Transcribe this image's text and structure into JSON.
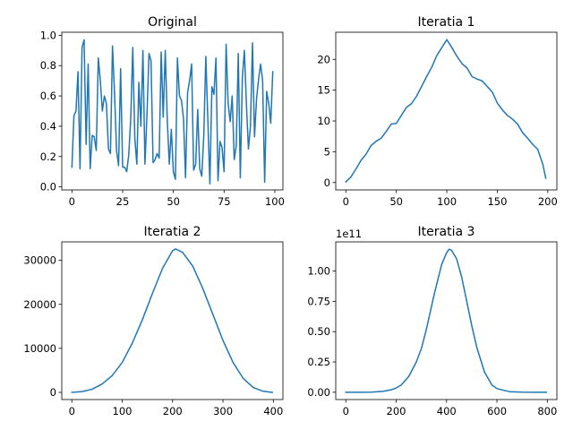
{
  "colors": {
    "series": "#1f77b4",
    "axes": "#000000",
    "background": "#ffffff"
  },
  "chart_data": [
    {
      "type": "line",
      "title": "Original",
      "xlabel": "",
      "ylabel": "",
      "xlim": [
        -5,
        104
      ],
      "ylim": [
        -0.02,
        1.02
      ],
      "xticks": [
        0,
        25,
        50,
        75,
        100
      ],
      "yticks": [
        0.0,
        0.2,
        0.4,
        0.6,
        0.8,
        1.0
      ],
      "ytick_labels": [
        "0.0",
        "0.2",
        "0.4",
        "0.6",
        "0.8",
        "1.0"
      ],
      "offset_label": "",
      "grid": false,
      "x": [
        0,
        1,
        2,
        3,
        4,
        5,
        6,
        7,
        8,
        9,
        10,
        11,
        12,
        13,
        14,
        15,
        16,
        17,
        18,
        19,
        20,
        21,
        22,
        23,
        24,
        25,
        26,
        27,
        28,
        29,
        30,
        31,
        32,
        33,
        34,
        35,
        36,
        37,
        38,
        39,
        40,
        41,
        42,
        43,
        44,
        45,
        46,
        47,
        48,
        49,
        50,
        51,
        52,
        53,
        54,
        55,
        56,
        57,
        58,
        59,
        60,
        61,
        62,
        63,
        64,
        65,
        66,
        67,
        68,
        69,
        70,
        71,
        72,
        73,
        74,
        75,
        76,
        77,
        78,
        79,
        80,
        81,
        82,
        83,
        84,
        85,
        86,
        87,
        88,
        89,
        90,
        91,
        92,
        93,
        94,
        95,
        96,
        97,
        98,
        99
      ],
      "y": [
        0.13,
        0.47,
        0.5,
        0.76,
        0.12,
        0.92,
        0.97,
        0.28,
        0.81,
        0.12,
        0.34,
        0.33,
        0.24,
        0.85,
        0.7,
        0.5,
        0.6,
        0.55,
        0.25,
        0.22,
        0.93,
        0.62,
        0.24,
        0.14,
        0.78,
        0.13,
        0.13,
        0.1,
        0.21,
        0.45,
        0.92,
        0.32,
        0.15,
        0.69,
        0.4,
        0.9,
        0.15,
        0.48,
        0.88,
        0.83,
        0.16,
        0.18,
        0.22,
        0.19,
        0.89,
        0.46,
        0.9,
        0.44,
        0.15,
        0.38,
        0.1,
        0.05,
        0.85,
        0.6,
        0.57,
        0.45,
        0.06,
        0.62,
        0.7,
        0.81,
        0.11,
        0.15,
        0.51,
        0.12,
        0.07,
        0.34,
        0.86,
        0.44,
        0.02,
        0.66,
        0.61,
        0.85,
        0.04,
        0.3,
        0.26,
        0.1,
        0.94,
        0.55,
        0.43,
        0.6,
        0.18,
        0.27,
        0.88,
        0.06,
        0.72,
        0.9,
        0.55,
        0.25,
        0.4,
        0.95,
        0.33,
        0.58,
        0.71,
        0.81,
        0.7,
        0.03,
        0.63,
        0.55,
        0.42,
        0.76
      ]
    },
    {
      "type": "line",
      "title": "Iteratia 1",
      "xlabel": "",
      "ylabel": "",
      "xlim": [
        -10,
        209
      ],
      "ylim": [
        -1.2,
        24.4
      ],
      "xticks": [
        0,
        50,
        100,
        150,
        200
      ],
      "yticks": [
        0,
        5,
        10,
        15,
        20
      ],
      "ytick_labels": [
        "0",
        "5",
        "10",
        "15",
        "20"
      ],
      "offset_label": "",
      "grid": false,
      "x": [
        0,
        5,
        10,
        15,
        20,
        25,
        30,
        35,
        40,
        45,
        50,
        55,
        60,
        65,
        70,
        75,
        80,
        85,
        90,
        95,
        100,
        105,
        110,
        115,
        120,
        125,
        130,
        135,
        140,
        145,
        150,
        155,
        160,
        165,
        170,
        175,
        180,
        185,
        190,
        195,
        198
      ],
      "y": [
        0.1,
        0.9,
        2.2,
        3.6,
        4.6,
        6.0,
        6.7,
        7.2,
        8.3,
        9.5,
        9.6,
        10.9,
        12.2,
        12.8,
        14.0,
        15.6,
        17.2,
        18.7,
        20.6,
        21.9,
        23.2,
        21.9,
        20.5,
        19.3,
        18.6,
        17.2,
        16.8,
        16.5,
        15.6,
        14.7,
        12.9,
        11.8,
        10.9,
        10.3,
        9.5,
        8.1,
        7.2,
        6.2,
        5.4,
        3.0,
        0.7
      ]
    },
    {
      "type": "line",
      "title": "Iteratia 2",
      "xlabel": "",
      "ylabel": "",
      "xlim": [
        -20,
        419
      ],
      "ylim": [
        -1630,
        34200
      ],
      "xticks": [
        0,
        100,
        200,
        300,
        400
      ],
      "yticks": [
        0,
        10000,
        20000,
        30000
      ],
      "ytick_labels": [
        "0",
        "10000",
        "20000",
        "30000"
      ],
      "offset_label": "",
      "grid": false,
      "x": [
        0,
        20,
        40,
        60,
        80,
        100,
        120,
        140,
        160,
        180,
        200,
        206,
        220,
        240,
        260,
        280,
        300,
        320,
        340,
        360,
        380,
        398
      ],
      "y": [
        0,
        180,
        700,
        1900,
        3800,
        6800,
        11200,
        16500,
        22500,
        28200,
        32200,
        32600,
        31800,
        28700,
        23600,
        17700,
        11800,
        6800,
        3200,
        1100,
        250,
        0
      ]
    },
    {
      "type": "line",
      "title": "Iteratia 3",
      "xlabel": "",
      "ylabel": "",
      "xlim": [
        -40,
        838
      ],
      "ylim": [
        -0.06,
        1.24
      ],
      "xticks": [
        0,
        200,
        400,
        600,
        800
      ],
      "yticks": [
        0.0,
        0.25,
        0.5,
        0.75,
        1.0
      ],
      "ytick_labels": [
        "0.00",
        "0.25",
        "0.50",
        "0.75",
        "1.00"
      ],
      "offset_label": "1e11",
      "grid": false,
      "x": [
        0,
        50,
        100,
        150,
        180,
        200,
        220,
        250,
        280,
        300,
        320,
        350,
        380,
        400,
        410,
        420,
        440,
        460,
        480,
        500,
        520,
        550,
        580,
        600,
        650,
        700,
        750,
        796
      ],
      "y": [
        0,
        0,
        0.001,
        0.008,
        0.02,
        0.035,
        0.06,
        0.13,
        0.25,
        0.36,
        0.52,
        0.8,
        1.05,
        1.15,
        1.18,
        1.17,
        1.1,
        0.95,
        0.75,
        0.55,
        0.37,
        0.17,
        0.06,
        0.03,
        0.005,
        0.001,
        0,
        0
      ]
    }
  ]
}
